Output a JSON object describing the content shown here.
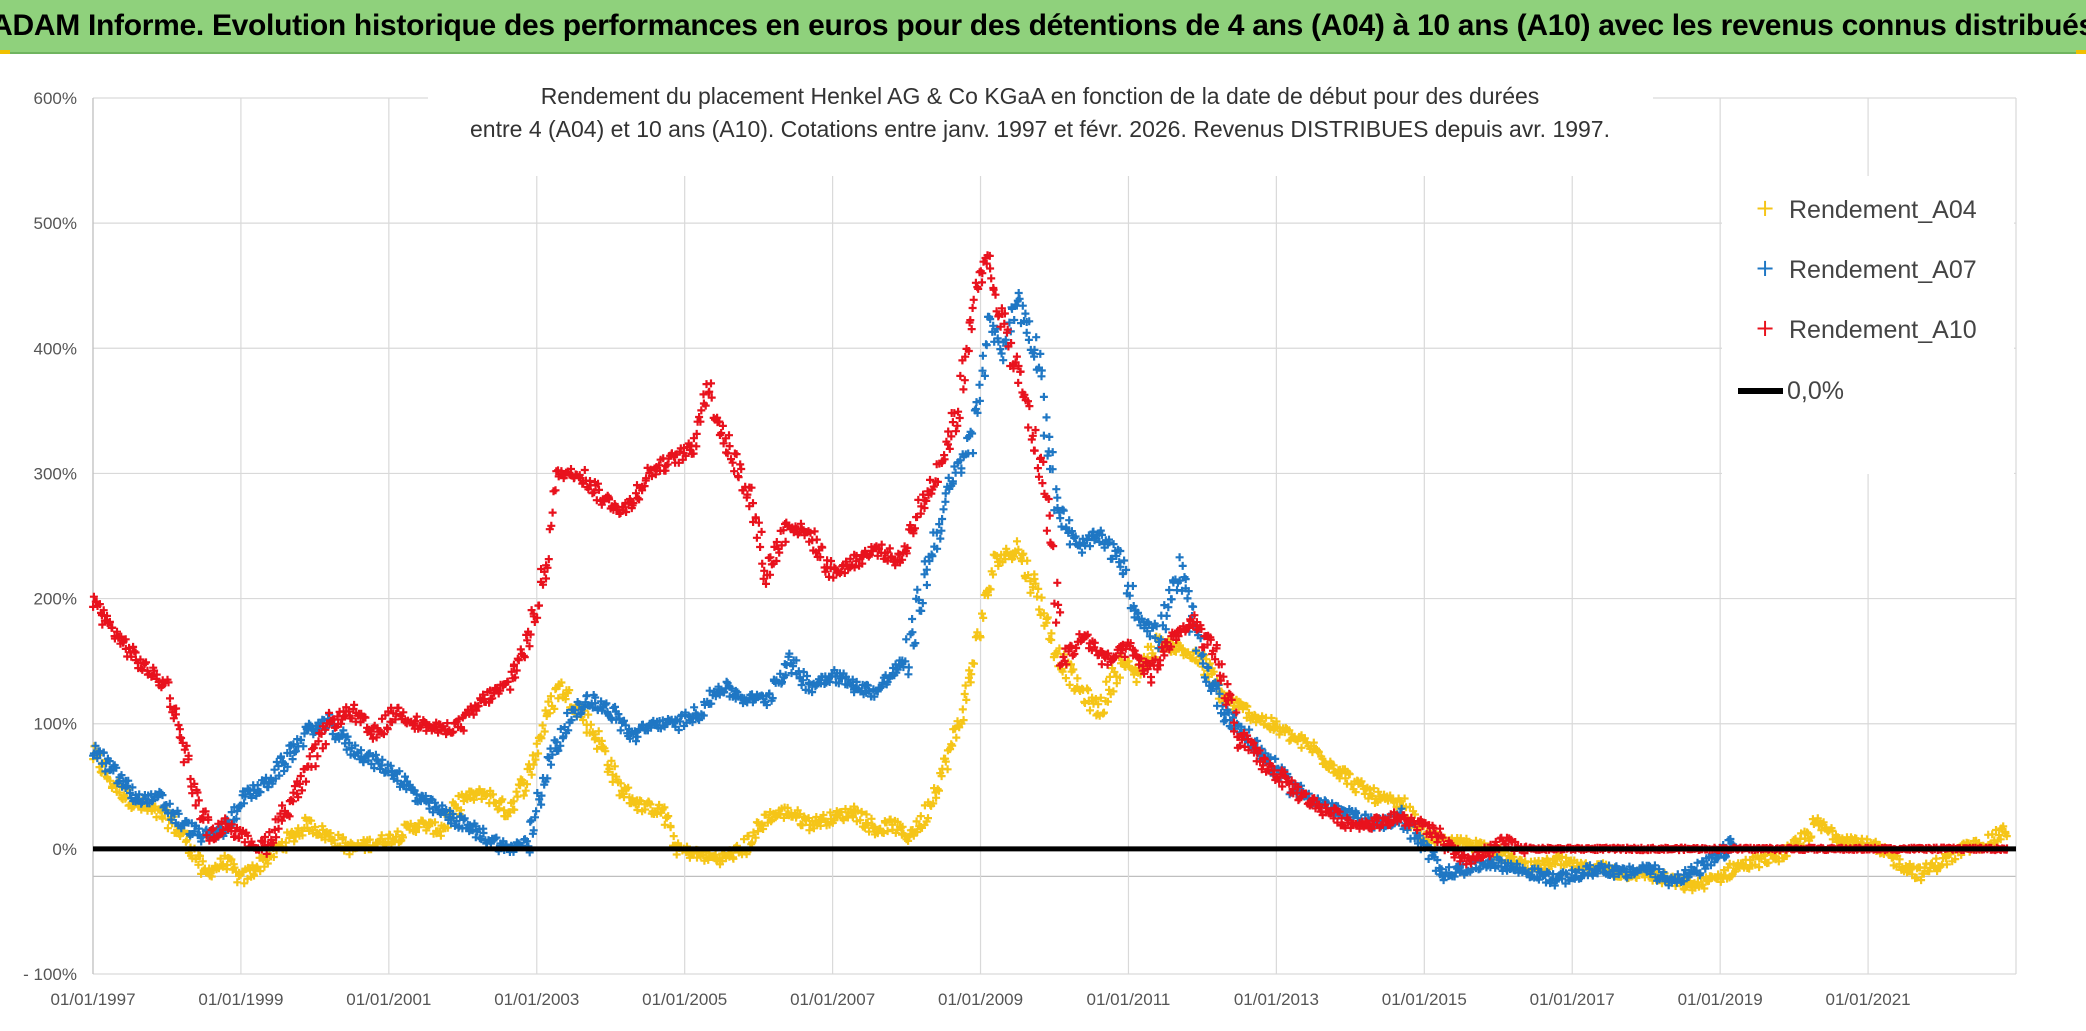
{
  "header": {
    "banner": "ADAM Informe. Evolution historique des performances en euros pour des détentions de 4 ans (A04) à 10 ans (A10) avec les revenus connus distribués"
  },
  "colors": {
    "banner_bg": "#8fd17c",
    "a04": "#f5c518",
    "a07": "#1f77c4",
    "a10": "#e8121d",
    "zero": "#000000",
    "grid": "#d9d9d9"
  },
  "chart_data": {
    "type": "scatter",
    "title_line1": "Rendement du placement Henkel AG & Co KGaA en fonction de la date de début pour des durées",
    "title_line2": "entre 4 (A04) et 10 ans (A10). Cotations entre janv. 1997 et févr. 2026. Revenus DISTRIBUES depuis avr. 1997.",
    "y_ticks": [
      "600%",
      "500%",
      "400%",
      "300%",
      "200%",
      "100%",
      "0%",
      "- 100%"
    ],
    "y_tick_values": [
      600,
      500,
      400,
      300,
      200,
      100,
      0,
      -100
    ],
    "x_ticks": [
      "01/01/1997",
      "01/01/1999",
      "01/01/2001",
      "01/01/2003",
      "01/01/2005",
      "01/01/2007",
      "01/01/2009",
      "01/01/2011",
      "01/01/2013",
      "01/01/2015",
      "01/01/2017",
      "01/01/2019",
      "01/01/2021"
    ],
    "x_tick_years": [
      1997,
      1999,
      2001,
      2003,
      2005,
      2007,
      2009,
      2011,
      2013,
      2015,
      2017,
      2019,
      2021
    ],
    "xlim": [
      1997,
      2023.0
    ],
    "ylim": [
      -100,
      600
    ],
    "legend": [
      "Rendement_A04",
      "Rendement_A07",
      "Rendement_A10",
      "0,0%"
    ],
    "legend_position": "top-right",
    "series": [
      {
        "name": "Rendement_A04",
        "x": [
          1997.0,
          1997.3,
          1997.6,
          1998.0,
          1998.3,
          1998.5,
          1998.8,
          1999.0,
          1999.3,
          1999.6,
          1999.9,
          2000.2,
          2000.5,
          2000.8,
          2001.1,
          2001.4,
          2001.7,
          2002.0,
          2002.3,
          2002.6,
          2002.9,
          2003.1,
          2003.3,
          2003.6,
          2003.9,
          2004.1,
          2004.4,
          2004.7,
          2004.9,
          2005.2,
          2005.5,
          2005.8,
          2006.1,
          2006.4,
          2006.7,
          2007.0,
          2007.3,
          2007.6,
          2007.8,
          2008.0,
          2008.2,
          2008.4,
          2008.6,
          2008.8,
          2009.0,
          2009.2,
          2009.5,
          2009.8,
          2010.0,
          2010.3,
          2010.6,
          2010.9,
          2011.1,
          2011.4,
          2011.7,
          2012.0,
          2012.3,
          2012.6,
          2012.9,
          2013.2,
          2013.5,
          2013.8,
          2014.1,
          2014.4,
          2014.7,
          2015.0,
          2015.3,
          2015.6,
          2015.9,
          2016.2,
          2016.5,
          2016.8,
          2017.1,
          2017.4,
          2017.7,
          2018.0,
          2018.3,
          2018.6,
          2018.9,
          2019.2,
          2019.5,
          2019.8,
          2020.0,
          2020.3,
          2020.6,
          2020.9,
          2021.1,
          2021.4,
          2021.7,
          2022.0,
          2022.3,
          2022.6,
          2022.9
        ],
        "y": [
          75,
          50,
          35,
          25,
          5,
          -20,
          -10,
          -25,
          -10,
          5,
          20,
          10,
          0,
          5,
          10,
          20,
          15,
          40,
          45,
          30,
          60,
          100,
          130,
          110,
          80,
          50,
          35,
          30,
          0,
          -5,
          -8,
          0,
          25,
          30,
          20,
          25,
          30,
          15,
          20,
          10,
          20,
          50,
          80,
          120,
          180,
          230,
          240,
          200,
          160,
          130,
          110,
          150,
          140,
          165,
          160,
          150,
          120,
          110,
          100,
          90,
          80,
          65,
          50,
          40,
          35,
          10,
          5,
          5,
          0,
          -10,
          -15,
          -10,
          -15,
          -15,
          -20,
          -20,
          -25,
          -30,
          -25,
          -15,
          -10,
          -5,
          0,
          20,
          10,
          5,
          0,
          -10,
          -20,
          -10,
          0,
          5,
          15
        ]
      },
      {
        "name": "Rendement_A07",
        "x": [
          1997.0,
          1997.3,
          1997.6,
          1997.9,
          1998.2,
          1998.5,
          1998.8,
          1999.0,
          1999.3,
          1999.6,
          1999.9,
          2000.2,
          2000.5,
          2000.8,
          2001.1,
          2001.4,
          2001.7,
          2002.0,
          2002.3,
          2002.6,
          2002.9,
          2003.1,
          2003.4,
          2003.7,
          2004.0,
          2004.3,
          2004.6,
          2004.9,
          2005.2,
          2005.5,
          2005.8,
          2006.1,
          2006.4,
          2006.7,
          2007.0,
          2007.3,
          2007.6,
          2007.8,
          2008.0,
          2008.3,
          2008.6,
          2008.9,
          2009.1,
          2009.3,
          2009.5,
          2009.8,
          2010.0,
          2010.3,
          2010.6,
          2010.9,
          2011.1,
          2011.4,
          2011.7,
          2012.0,
          2012.3,
          2012.6,
          2012.9,
          2013.2,
          2013.5,
          2013.8,
          2014.1,
          2014.4,
          2014.7,
          2015.0,
          2015.3,
          2015.6,
          2015.9,
          2016.2,
          2016.5,
          2016.8,
          2017.1,
          2017.4,
          2017.7,
          2018.0,
          2018.3,
          2018.6,
          2018.9,
          2019.2
        ],
        "y": [
          80,
          60,
          40,
          40,
          20,
          10,
          15,
          40,
          50,
          70,
          95,
          100,
          80,
          70,
          60,
          40,
          30,
          20,
          10,
          0,
          5,
          60,
          100,
          120,
          110,
          90,
          100,
          100,
          110,
          130,
          120,
          120,
          150,
          130,
          140,
          130,
          125,
          140,
          150,
          230,
          290,
          330,
          420,
          400,
          440,
          390,
          280,
          240,
          250,
          230,
          190,
          170,
          220,
          150,
          110,
          90,
          70,
          50,
          40,
          30,
          25,
          20,
          25,
          0,
          -20,
          -15,
          -10,
          -15,
          -20,
          -25,
          -20,
          -15,
          -20,
          -15,
          -25,
          -20,
          -10,
          5
        ]
      },
      {
        "name": "Rendement_A10",
        "x": [
          1997.0,
          1997.2,
          1997.4,
          1997.6,
          1997.8,
          1998.0,
          1998.2,
          1998.4,
          1998.6,
          1998.8,
          1999.0,
          1999.3,
          1999.6,
          1999.9,
          2000.2,
          2000.5,
          2000.8,
          2001.1,
          2001.4,
          2001.7,
          2002.0,
          2002.3,
          2002.6,
          2002.9,
          2003.1,
          2003.3,
          2003.6,
          2003.9,
          2004.2,
          2004.5,
          2004.8,
          2005.1,
          2005.3,
          2005.6,
          2005.9,
          2006.1,
          2006.4,
          2006.7,
          2007.0,
          2007.3,
          2007.6,
          2007.9,
          2008.1,
          2008.4,
          2008.7,
          2008.9,
          2009.1,
          2009.3,
          2009.6,
          2009.9,
          2010.1,
          2010.4,
          2010.7,
          2011.0,
          2011.3,
          2011.6,
          2011.9,
          2012.2,
          2012.5,
          2012.8,
          2013.1,
          2013.4,
          2013.7,
          2014.0,
          2014.3,
          2014.6,
          2014.9,
          2015.2,
          2015.5,
          2015.8,
          2016.1,
          2016.4,
          2016.7,
          2017.0,
          2018.0,
          2019.0,
          2020.0,
          2021.0,
          2022.0,
          2022.9
        ],
        "y": [
          200,
          180,
          165,
          150,
          140,
          130,
          90,
          40,
          10,
          20,
          10,
          0,
          30,
          60,
          100,
          110,
          90,
          110,
          100,
          95,
          100,
          120,
          130,
          170,
          220,
          300,
          300,
          280,
          270,
          300,
          310,
          320,
          370,
          320,
          280,
          220,
          260,
          250,
          220,
          230,
          240,
          230,
          260,
          300,
          350,
          440,
          470,
          420,
          360,
          280,
          150,
          170,
          150,
          160,
          140,
          170,
          180,
          150,
          90,
          70,
          55,
          40,
          30,
          20,
          20,
          25,
          20,
          10,
          -10,
          -5,
          5,
          0,
          0,
          0,
          0,
          0,
          0,
          0,
          0,
          0
        ]
      }
    ]
  }
}
